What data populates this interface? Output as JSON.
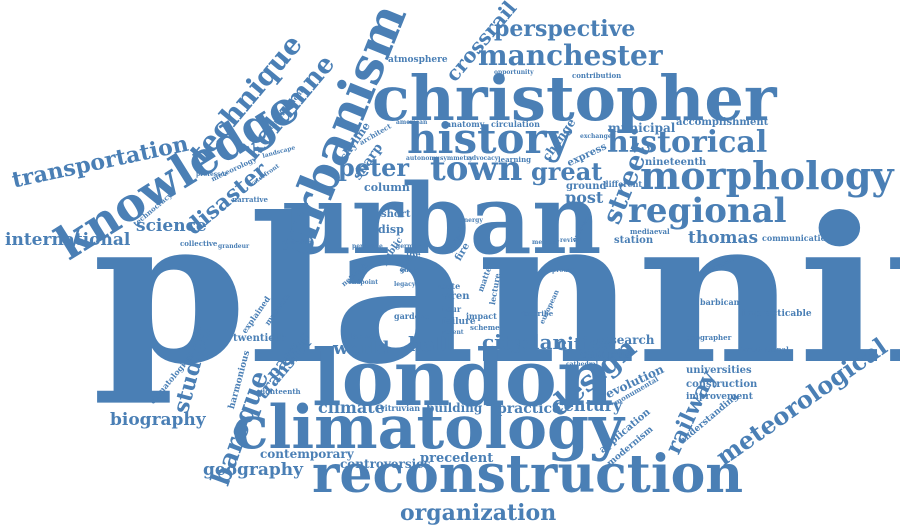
{
  "cloud": {
    "color": "#4a7fb5",
    "words": [
      {
        "text": "planning"
      },
      {
        "text": "urban"
      },
      {
        "text": "london"
      },
      {
        "text": "christopher"
      },
      {
        "text": "climatology"
      },
      {
        "text": "reconstruction"
      },
      {
        "text": "knowledge"
      },
      {
        "text": "urbanism"
      },
      {
        "text": "history"
      },
      {
        "text": "morphology"
      },
      {
        "text": "historical"
      },
      {
        "text": "town"
      },
      {
        "text": "regional"
      },
      {
        "text": "manchester"
      },
      {
        "text": "perspective"
      },
      {
        "text": "technique"
      },
      {
        "text": "kolumne"
      },
      {
        "text": "transportation"
      },
      {
        "text": "disaster"
      },
      {
        "text": "international"
      },
      {
        "text": "science"
      },
      {
        "text": "peter"
      },
      {
        "text": "great"
      },
      {
        "text": "street"
      },
      {
        "text": "design"
      },
      {
        "text": "meteorological"
      },
      {
        "text": "railway"
      },
      {
        "text": "baroque"
      },
      {
        "text": "studies"
      },
      {
        "text": "biography"
      },
      {
        "text": "geography"
      },
      {
        "text": "organization"
      },
      {
        "text": "world"
      },
      {
        "text": "hall"
      },
      {
        "text": "city"
      },
      {
        "text": "plan"
      },
      {
        "text": "cities"
      },
      {
        "text": "century"
      },
      {
        "text": "thomas"
      },
      {
        "text": "crossrail"
      },
      {
        "text": "municipal"
      },
      {
        "text": "accomplishment"
      },
      {
        "text": "post"
      },
      {
        "text": "paper"
      },
      {
        "text": "transfer"
      },
      {
        "text": "climate"
      },
      {
        "text": "practice"
      },
      {
        "text": "contemporary"
      },
      {
        "text": "controversies"
      },
      {
        "text": "precedent"
      },
      {
        "text": "building"
      },
      {
        "text": "research"
      },
      {
        "text": "campus"
      },
      {
        "text": "revolution"
      },
      {
        "text": "universities"
      },
      {
        "text": "construction"
      },
      {
        "text": "improvement"
      },
      {
        "text": "application"
      },
      {
        "text": "modernism"
      },
      {
        "text": "understanding"
      },
      {
        "text": "barbican"
      },
      {
        "text": "impracticable"
      },
      {
        "text": "institutional"
      },
      {
        "text": "geographer"
      },
      {
        "text": "communication"
      },
      {
        "text": "station"
      },
      {
        "text": "mediaeval"
      },
      {
        "text": "nineteenth"
      },
      {
        "text": "different"
      },
      {
        "text": "ground"
      },
      {
        "text": "express"
      },
      {
        "text": "change"
      },
      {
        "text": "anatomy"
      },
      {
        "text": "circulation"
      },
      {
        "text": "atmosphere"
      },
      {
        "text": "opportunity"
      },
      {
        "text": "contribution"
      },
      {
        "text": "skyline"
      },
      {
        "text": "sharp"
      },
      {
        "text": "column"
      },
      {
        "text": "short"
      },
      {
        "text": "disp"
      },
      {
        "text": "memory"
      },
      {
        "text": "revival"
      },
      {
        "text": "twentieth"
      },
      {
        "text": "harmonious"
      },
      {
        "text": "eighteenth"
      },
      {
        "text": "climatological"
      },
      {
        "text": "explained"
      },
      {
        "text": "museum"
      },
      {
        "text": "collective"
      },
      {
        "text": "technocracy"
      },
      {
        "text": "meteorology"
      },
      {
        "text": "landscape"
      },
      {
        "text": "professor"
      },
      {
        "text": "redevelopment"
      },
      {
        "text": "narrative"
      },
      {
        "text": "waterfront"
      },
      {
        "text": "grandeur"
      },
      {
        "text": "churches"
      },
      {
        "text": "vitruvian"
      },
      {
        "text": "fire"
      },
      {
        "text": "wren"
      },
      {
        "text": "tour"
      },
      {
        "text": "failure"
      },
      {
        "text": "route"
      },
      {
        "text": "legacy"
      },
      {
        "text": "lived"
      },
      {
        "text": "matter"
      },
      {
        "text": "impact"
      },
      {
        "text": "scheme"
      },
      {
        "text": "recent"
      },
      {
        "text": "monumental"
      },
      {
        "text": "cathedral"
      },
      {
        "text": "describe"
      },
      {
        "text": "proust"
      },
      {
        "text": "german"
      },
      {
        "text": "persuade"
      },
      {
        "text": "learning"
      },
      {
        "text": "advocacy"
      },
      {
        "text": "symmetry"
      },
      {
        "text": "autonomy"
      },
      {
        "text": "architect"
      },
      {
        "text": "american"
      },
      {
        "text": "exchange"
      },
      {
        "text": "guide"
      },
      {
        "text": "network"
      },
      {
        "text": "endpoint"
      },
      {
        "text": "gardens"
      },
      {
        "text": "planner"
      },
      {
        "text": "life"
      },
      {
        "text": "public"
      },
      {
        "text": "space"
      },
      {
        "text": "lecture"
      },
      {
        "text": "energy"
      },
      {
        "text": "approach"
      },
      {
        "text": "paternoster"
      },
      {
        "text": "european"
      }
    ]
  }
}
